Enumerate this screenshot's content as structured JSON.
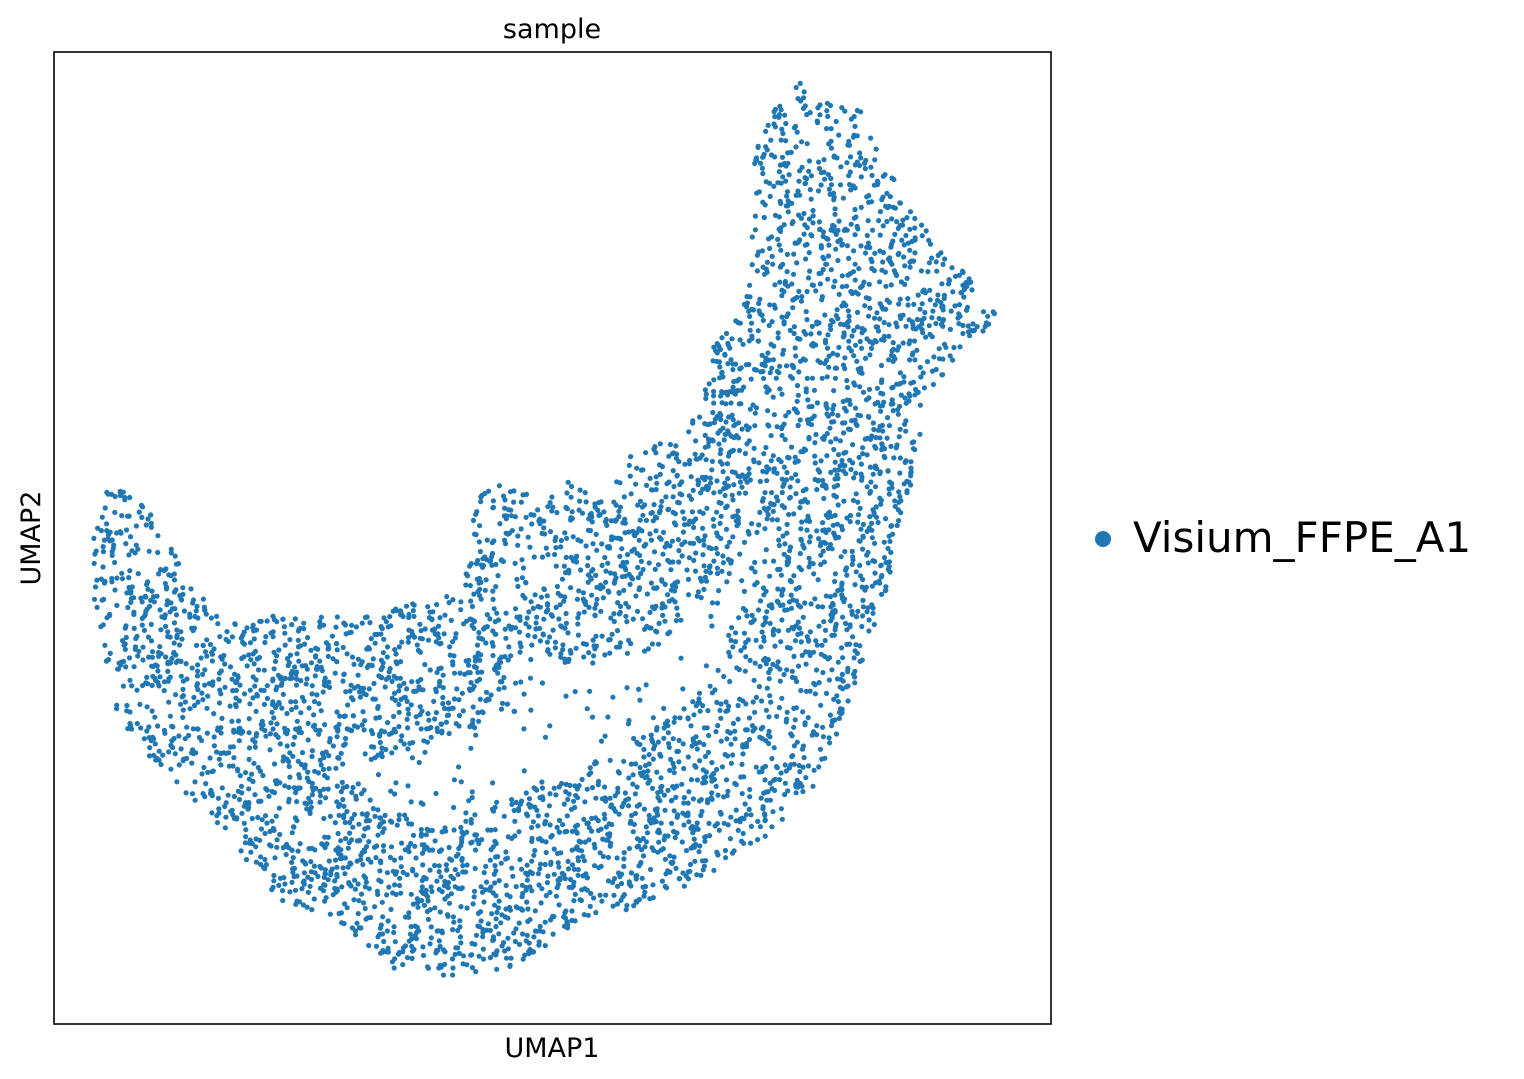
{
  "chart_data": {
    "type": "scatter",
    "title": "sample",
    "xlabel": "UMAP1",
    "ylabel": "UMAP2",
    "xlim": [
      0,
      100
    ],
    "ylim": [
      0,
      100
    ],
    "grid": false,
    "ticks": false,
    "legend": {
      "placement": "right",
      "entries": [
        {
          "name": "Visium_FFPE_A1",
          "color": "#1f77b4"
        }
      ]
    },
    "series": [
      {
        "name": "Visium_FFPE_A1",
        "color": "#1f77b4",
        "marker": "circle",
        "approx_point_count": 5000,
        "shape_note": "single cluster forming a curved U/crescent band",
        "outline_pts": [
          [
            5,
            55
          ],
          [
            7,
            55
          ],
          [
            9,
            54
          ],
          [
            11,
            50
          ],
          [
            13,
            47
          ],
          [
            17,
            41
          ],
          [
            22,
            42
          ],
          [
            27,
            42
          ],
          [
            31,
            42
          ],
          [
            35,
            43
          ],
          [
            39,
            44
          ],
          [
            41,
            44
          ],
          [
            42,
            53
          ],
          [
            44,
            56
          ],
          [
            47,
            55
          ],
          [
            49,
            53
          ],
          [
            52,
            57
          ],
          [
            55,
            54
          ],
          [
            58,
            59
          ],
          [
            62,
            60
          ],
          [
            65,
            63
          ],
          [
            66,
            70
          ],
          [
            69,
            73
          ],
          [
            70,
            78
          ],
          [
            70,
            87
          ],
          [
            71,
            93
          ],
          [
            73,
            95
          ],
          [
            75,
            97
          ],
          [
            78,
            95
          ],
          [
            81,
            94
          ],
          [
            83,
            89
          ],
          [
            86,
            84
          ],
          [
            88,
            81
          ],
          [
            90,
            79
          ],
          [
            95,
            73
          ],
          [
            91,
            69
          ],
          [
            87,
            64
          ],
          [
            87,
            58
          ],
          [
            85,
            53
          ],
          [
            84,
            46
          ],
          [
            82,
            40
          ],
          [
            79,
            31
          ],
          [
            76,
            24
          ],
          [
            71,
            19
          ],
          [
            65,
            15
          ],
          [
            59,
            12
          ],
          [
            53,
            11
          ],
          [
            47,
            6
          ],
          [
            42,
            5
          ],
          [
            35,
            5
          ],
          [
            28,
            11
          ],
          [
            22,
            13
          ],
          [
            17,
            20
          ],
          [
            12,
            25
          ],
          [
            8,
            29
          ],
          [
            6,
            33
          ],
          [
            5,
            38
          ],
          [
            4,
            44
          ],
          [
            4,
            50
          ]
        ],
        "inner_pts": [
          [
            9,
            52
          ],
          [
            13,
            45
          ],
          [
            19,
            39
          ],
          [
            25,
            38
          ],
          [
            31,
            38
          ],
          [
            37,
            40
          ],
          [
            42,
            49
          ],
          [
            46,
            52
          ],
          [
            50,
            50
          ],
          [
            54,
            48
          ],
          [
            57,
            52
          ],
          [
            61,
            56
          ],
          [
            64,
            60
          ],
          [
            68,
            66
          ],
          [
            72,
            72
          ],
          [
            76,
            80
          ],
          [
            78,
            87
          ],
          [
            80,
            91
          ],
          [
            83,
            84
          ],
          [
            86,
            78
          ],
          [
            90,
            73
          ],
          [
            84,
            66
          ],
          [
            83,
            58
          ],
          [
            82,
            50
          ],
          [
            80,
            42
          ],
          [
            77,
            34
          ],
          [
            74,
            28
          ],
          [
            69,
            23
          ],
          [
            63,
            19
          ],
          [
            57,
            16
          ],
          [
            51,
            14
          ],
          [
            46,
            11
          ],
          [
            40,
            9
          ],
          [
            33,
            10
          ],
          [
            27,
            14
          ],
          [
            21,
            17
          ],
          [
            16,
            23
          ],
          [
            11,
            29
          ],
          [
            8,
            35
          ],
          [
            7,
            43
          ]
        ]
      }
    ]
  }
}
